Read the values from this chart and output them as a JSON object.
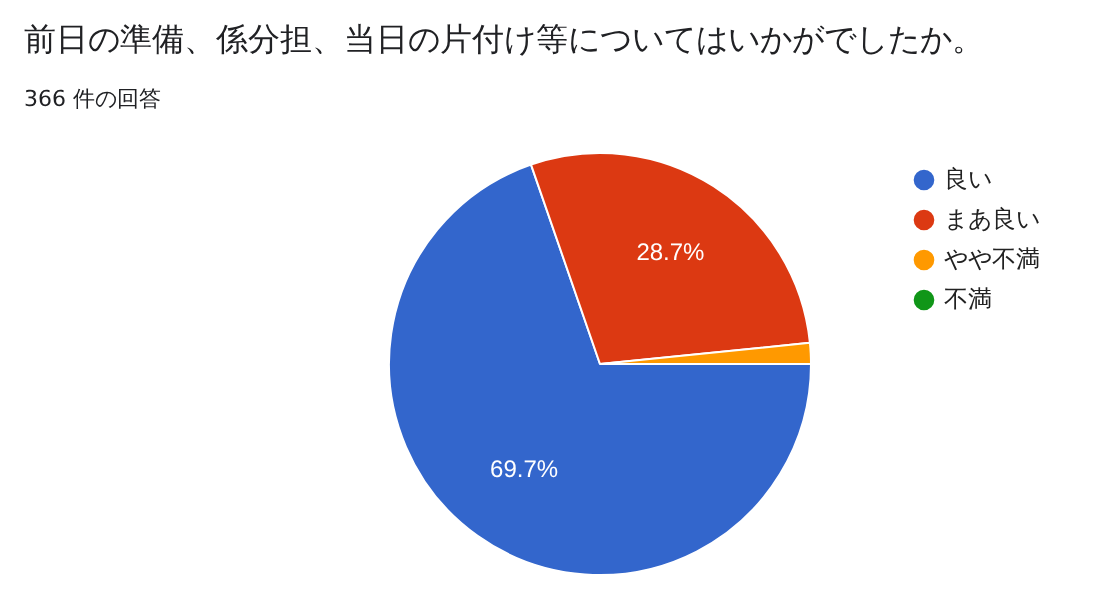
{
  "chart_data": {
    "type": "pie",
    "title": "前日の準備、係分担、当日の片付け等についてはいかがでしたか。",
    "subtitle": "366 件の回答",
    "categories": [
      "良い",
      "まあ良い",
      "やや不満",
      "不満"
    ],
    "values": [
      69.7,
      28.7,
      1.6,
      0
    ],
    "colors": [
      "#3366cc",
      "#dc3912",
      "#ff9900",
      "#109618"
    ],
    "value_labels": [
      "69.7%",
      "28.7%",
      null,
      null
    ],
    "legend": "right"
  }
}
